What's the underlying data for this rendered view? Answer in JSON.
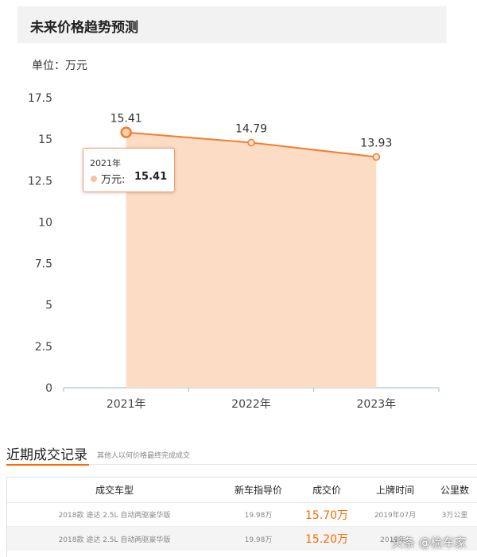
{
  "header": {
    "title": "未来价格趋势预测"
  },
  "chart": {
    "unit_label": "单位：万元"
  },
  "chart_data": {
    "type": "area",
    "categories": [
      "2021年",
      "2022年",
      "2023年"
    ],
    "series": [
      {
        "values": [
          15.41,
          14.79,
          13.93
        ]
      }
    ],
    "data_labels": [
      "15.41",
      "14.79",
      "13.93"
    ],
    "yticks": [
      "0",
      "2.5",
      "5",
      "7.5",
      "10",
      "12.5",
      "15",
      "17.5"
    ],
    "ylim": [
      0,
      17.5
    ],
    "grid": false,
    "line_color": "#f57c2b",
    "fill_color": "#fcdcc5"
  },
  "tooltip": {
    "title": "2021年",
    "name": "万元:",
    "value": "15.41"
  },
  "records": {
    "title": "近期成交记录",
    "subtitle": "其他人以何价格最终完成成交",
    "headers": [
      "成交车型",
      "新车指导价",
      "成交价",
      "上牌时间",
      "公里数"
    ],
    "rows": [
      [
        "2018款 途达 2.5L 自动两驱豪华版",
        "19.98万",
        "15.70万",
        "2019年07月",
        "3万公里"
      ],
      [
        "2018款 途达 2.5L 自动两驱豪华版",
        "19.98万",
        "15.20万",
        "2019年1",
        ""
      ]
    ]
  },
  "watermark": "头条 @检车家",
  "colors": {
    "accent": "#ff6a00"
  }
}
